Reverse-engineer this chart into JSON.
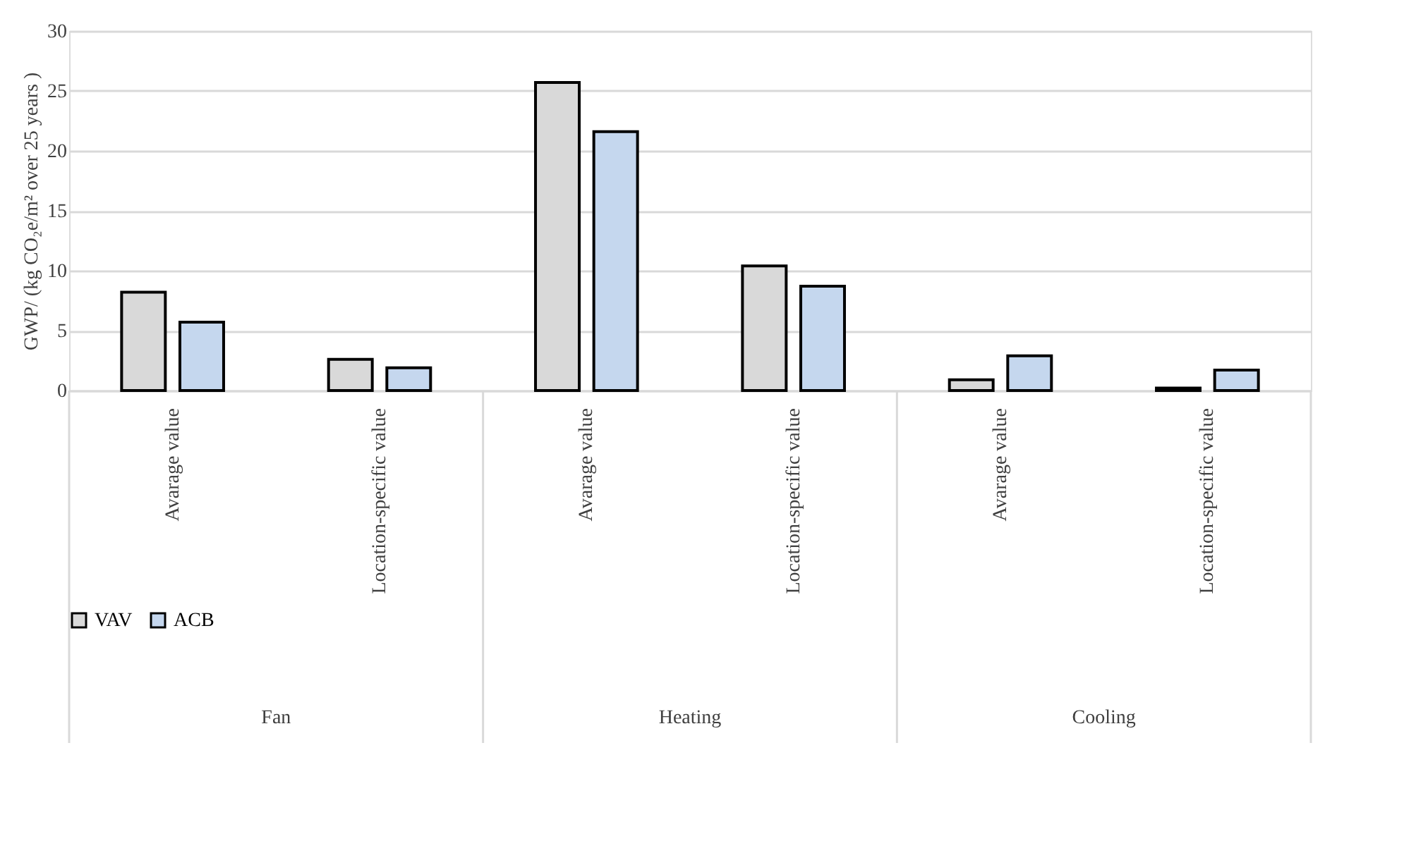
{
  "chart_data": {
    "type": "bar",
    "ylabel": "GWP/ (kg CO₂e/m² over 25 years )",
    "categories": [
      "Avarage value",
      "Location-specific value",
      "Avarage value",
      "Location-specific value",
      "Avarage value",
      "Location-specific value"
    ],
    "series": [
      {
        "name": "VAV",
        "color": "#d9d9d9",
        "values": [
          8.2,
          2.6,
          25.7,
          10.4,
          0.9,
          0.2
        ]
      },
      {
        "name": "ACB",
        "color": "#c5d7ee",
        "values": [
          5.7,
          1.9,
          21.6,
          8.7,
          2.9,
          1.7
        ]
      }
    ],
    "annotations": [
      "Fan",
      "Heating",
      "Cooling"
    ],
    "ylim": [
      0,
      30
    ],
    "yticks": [
      0,
      5,
      10,
      15,
      20,
      25,
      30
    ],
    "grid": "y",
    "legend": "bottom"
  }
}
